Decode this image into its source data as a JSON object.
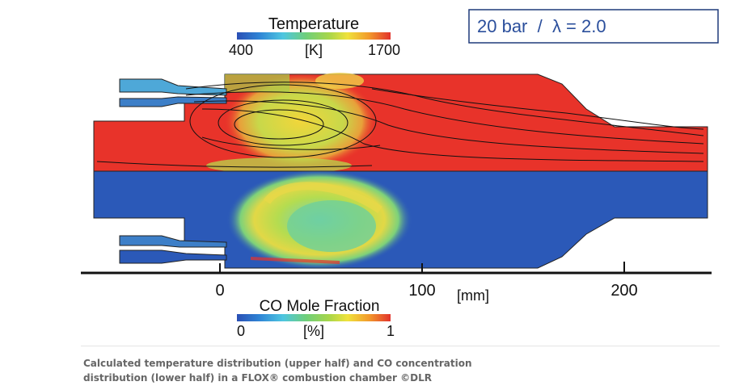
{
  "pressure_box": "20 bar  /  λ = 2.0",
  "temperature_legend": {
    "title": "Temperature",
    "min": "400",
    "unit": "[K]",
    "max": "1700"
  },
  "co_legend": {
    "title": "CO Mole Fraction",
    "min": "0",
    "unit": "[%]",
    "max": "1"
  },
  "axis": {
    "ticks": [
      "0",
      "100",
      "200"
    ],
    "unit": "[mm]"
  },
  "colors": {
    "hot_red": "#e8332a",
    "yellow": "#f0e23c",
    "green": "#9ccc3c",
    "cyan": "#4ec6e0",
    "blue": "#2b59b8",
    "box_border": "#1f3a7a"
  },
  "caption": {
    "line1": "Calculated temperature distribution (upper half) and CO concentration",
    "line2": "distribution (lower half) in a FLOX® combustion chamber ©DLR"
  }
}
